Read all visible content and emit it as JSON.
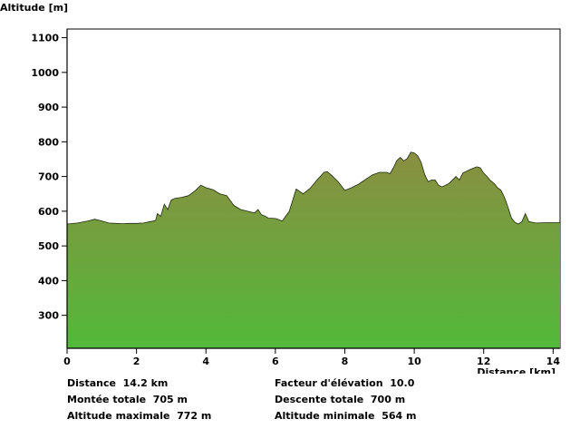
{
  "chart_data": {
    "type": "area",
    "title": "",
    "xlabel": "Distance [km]",
    "ylabel": "Altitude [m]",
    "xlim": [
      0,
      14.2
    ],
    "ylim": [
      205,
      1125
    ],
    "xticks": [
      0,
      2,
      4,
      6,
      8,
      10,
      12,
      14
    ],
    "yticks": [
      300,
      400,
      500,
      600,
      700,
      800,
      900,
      1000,
      1100
    ],
    "grid": false,
    "fill_colors": {
      "top": "#8a8e41",
      "bottom": "#52b93a"
    },
    "x": [
      0,
      0.3,
      0.6,
      0.8,
      1.0,
      1.2,
      1.4,
      1.6,
      1.8,
      2.0,
      2.2,
      2.4,
      2.55,
      2.6,
      2.7,
      2.8,
      2.9,
      3.0,
      3.1,
      3.3,
      3.5,
      3.7,
      3.85,
      4.0,
      4.2,
      4.4,
      4.6,
      4.8,
      5.0,
      5.2,
      5.4,
      5.5,
      5.6,
      5.7,
      5.8,
      6.0,
      6.2,
      6.4,
      6.6,
      6.8,
      6.9,
      7.0,
      7.2,
      7.4,
      7.5,
      7.6,
      7.8,
      8.0,
      8.2,
      8.4,
      8.6,
      8.8,
      9.0,
      9.2,
      9.3,
      9.4,
      9.5,
      9.6,
      9.7,
      9.8,
      9.9,
      10.0,
      10.1,
      10.2,
      10.3,
      10.4,
      10.5,
      10.6,
      10.7,
      10.8,
      11.0,
      11.2,
      11.3,
      11.4,
      11.6,
      11.8,
      11.9,
      12.0,
      12.1,
      12.2,
      12.3,
      12.4,
      12.5,
      12.6,
      12.7,
      12.8,
      12.9,
      13.0,
      13.1,
      13.2,
      13.3,
      13.5,
      13.8,
      14.0,
      14.2
    ],
    "y": [
      563,
      566,
      572,
      577,
      572,
      566,
      565,
      564,
      565,
      565,
      566,
      570,
      573,
      593,
      585,
      620,
      605,
      632,
      637,
      640,
      645,
      660,
      675,
      668,
      662,
      650,
      645,
      617,
      605,
      600,
      595,
      605,
      590,
      586,
      580,
      579,
      572,
      600,
      664,
      650,
      658,
      666,
      690,
      712,
      714,
      705,
      686,
      660,
      668,
      678,
      692,
      705,
      712,
      712,
      708,
      725,
      746,
      755,
      745,
      752,
      770,
      768,
      760,
      740,
      706,
      685,
      690,
      690,
      675,
      670,
      680,
      700,
      690,
      710,
      720,
      728,
      725,
      710,
      700,
      688,
      680,
      668,
      660,
      640,
      612,
      580,
      568,
      563,
      570,
      593,
      570,
      566,
      567,
      567,
      567
    ]
  },
  "stats": [
    {
      "label": "Distance",
      "value": "14.2 km"
    },
    {
      "label": "Facteur d'élévation",
      "value": "10.0"
    },
    {
      "label": "Montée totale",
      "value": "705 m"
    },
    {
      "label": "Descente totale",
      "value": "700 m"
    },
    {
      "label": "Altitude maximale",
      "value": "772 m"
    },
    {
      "label": "Altitude minimale",
      "value": "564 m"
    }
  ]
}
